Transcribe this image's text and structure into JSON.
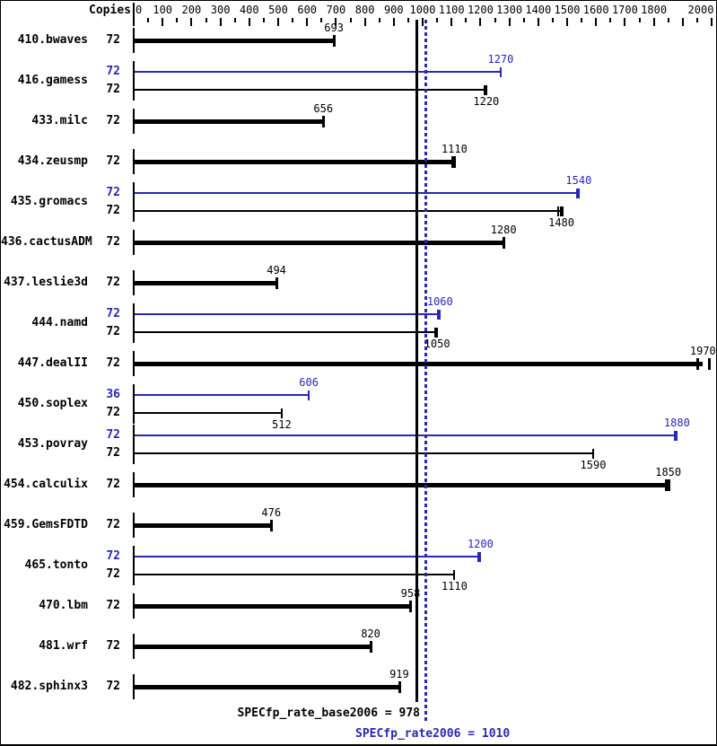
{
  "header": {
    "copies_label": "Copies"
  },
  "colors": {
    "base": "#000000",
    "peak": "#2828b4"
  },
  "summary": {
    "base_text": "SPECfp_rate_base2006 = 978",
    "base_value": 978,
    "peak_text": "SPECfp_rate2006 = 1010",
    "peak_value": 1010
  },
  "chart_data": {
    "type": "bar",
    "orientation": "horizontal",
    "title": "",
    "xlabel": "",
    "ylabel": "Copies",
    "xlim": [
      0,
      2000
    ],
    "axis": {
      "minor_step": 50,
      "major_step": 100,
      "tick_labels": [
        0,
        100,
        200,
        300,
        400,
        500,
        600,
        700,
        800,
        900,
        1000,
        1100,
        1200,
        1300,
        1400,
        1500,
        1600,
        1700,
        1800,
        2000
      ]
    },
    "reference_lines": [
      {
        "name": "base_mean",
        "value": 978,
        "style": "solid",
        "color": "#000000"
      },
      {
        "name": "peak_mean",
        "value": 1010,
        "style": "dotted",
        "color": "#2828b4"
      }
    ],
    "benchmarks": [
      {
        "name": "410.bwaves",
        "bars": [
          {
            "kind": "base",
            "copies": 72,
            "value": 693,
            "ticks": [
              693
            ]
          }
        ]
      },
      {
        "name": "416.gamess",
        "bars": [
          {
            "kind": "peak",
            "copies": 72,
            "value": 1270,
            "ticks": [
              1270
            ]
          },
          {
            "kind": "base",
            "copies": 72,
            "value": 1220,
            "ticks": [
              1213,
              1220
            ]
          }
        ]
      },
      {
        "name": "433.milc",
        "bars": [
          {
            "kind": "base",
            "copies": 72,
            "value": 656,
            "ticks": [
              656
            ]
          }
        ]
      },
      {
        "name": "434.zeusmp",
        "bars": [
          {
            "kind": "base",
            "copies": 72,
            "value": 1110,
            "ticks": [
              1103,
              1110
            ]
          }
        ]
      },
      {
        "name": "435.gromacs",
        "bars": [
          {
            "kind": "peak",
            "copies": 72,
            "value": 1540,
            "ticks": [
              1533,
              1540
            ]
          },
          {
            "kind": "base",
            "copies": 72,
            "value": 1480,
            "ticks": [
              1470,
              1477,
              1484
            ]
          }
        ]
      },
      {
        "name": "436.cactusADM",
        "bars": [
          {
            "kind": "base",
            "copies": 72,
            "value": 1280,
            "ticks": [
              1280
            ]
          }
        ]
      },
      {
        "name": "437.leslie3d",
        "bars": [
          {
            "kind": "base",
            "copies": 72,
            "value": 494,
            "ticks": [
              494
            ]
          }
        ]
      },
      {
        "name": "444.namd",
        "bars": [
          {
            "kind": "peak",
            "copies": 72,
            "value": 1060,
            "ticks": [
              1053,
              1060
            ]
          },
          {
            "kind": "base",
            "copies": 72,
            "value": 1050,
            "ticks": [
              1043,
              1050
            ]
          }
        ]
      },
      {
        "name": "447.dealII",
        "bars": [
          {
            "kind": "base",
            "copies": 72,
            "value": 1970,
            "ticks": [
              1950,
              1990
            ]
          }
        ]
      },
      {
        "name": "450.soplex",
        "bars": [
          {
            "kind": "peak",
            "copies": 36,
            "value": 606,
            "ticks": [
              606
            ]
          },
          {
            "kind": "base",
            "copies": 72,
            "value": 512,
            "ticks": [
              512
            ]
          }
        ]
      },
      {
        "name": "453.povray",
        "bars": [
          {
            "kind": "peak",
            "copies": 72,
            "value": 1880,
            "ticks": [
              1873,
              1880
            ]
          },
          {
            "kind": "base",
            "copies": 72,
            "value": 1590,
            "ticks": [
              1590
            ]
          }
        ]
      },
      {
        "name": "454.calculix",
        "bars": [
          {
            "kind": "base",
            "copies": 72,
            "value": 1850,
            "ticks": [
              1843,
              1850
            ]
          }
        ]
      },
      {
        "name": "459.GemsFDTD",
        "bars": [
          {
            "kind": "base",
            "copies": 72,
            "value": 476,
            "ticks": [
              476
            ]
          }
        ]
      },
      {
        "name": "465.tonto",
        "bars": [
          {
            "kind": "peak",
            "copies": 72,
            "value": 1200,
            "ticks": [
              1193,
              1200
            ]
          },
          {
            "kind": "base",
            "copies": 72,
            "value": 1110,
            "ticks": [
              1110
            ]
          }
        ]
      },
      {
        "name": "470.lbm",
        "bars": [
          {
            "kind": "base",
            "copies": 72,
            "value": 958,
            "ticks": [
              958
            ]
          }
        ]
      },
      {
        "name": "481.wrf",
        "bars": [
          {
            "kind": "base",
            "copies": 72,
            "value": 820,
            "ticks": [
              820
            ]
          }
        ]
      },
      {
        "name": "482.sphinx3",
        "bars": [
          {
            "kind": "base",
            "copies": 72,
            "value": 919,
            "ticks": [
              919
            ]
          }
        ]
      }
    ]
  }
}
